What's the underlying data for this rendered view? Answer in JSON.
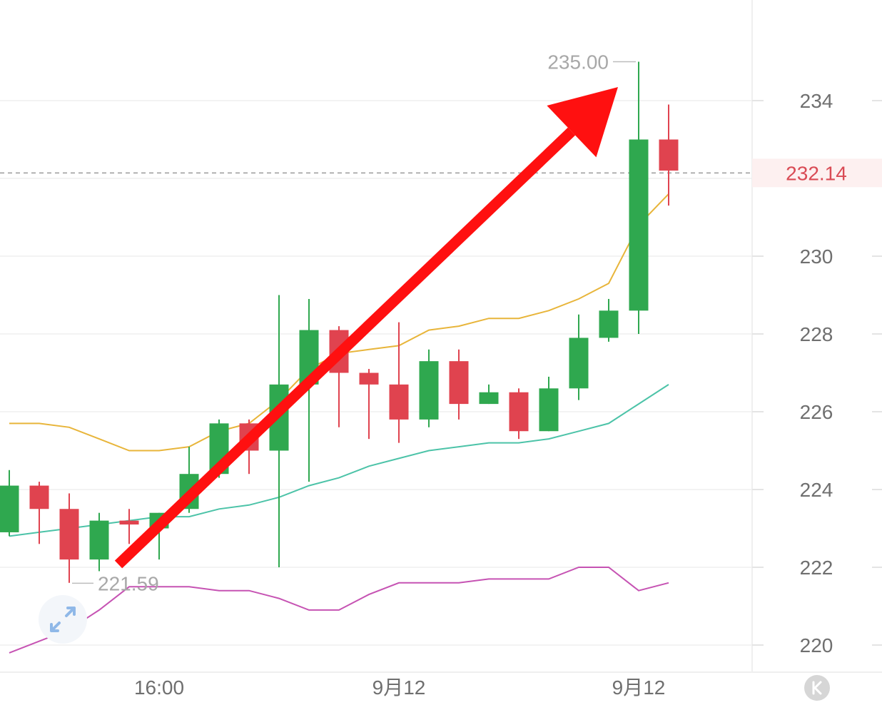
{
  "chart_data": {
    "type": "candlestick",
    "y_axis": {
      "ticks": [
        234,
        230,
        228,
        226,
        224,
        222,
        220
      ],
      "range": [
        219.3,
        236.6
      ]
    },
    "x_axis": {
      "labels": [
        {
          "text": "16:00",
          "index": 5
        },
        {
          "text": "9月12",
          "index": 13
        },
        {
          "text": "9月12",
          "index": 21
        }
      ]
    },
    "current_price": {
      "value": 232.14,
      "label": "232.14"
    },
    "high_marker": {
      "value": 235.0,
      "label": "235.00",
      "index": 21
    },
    "low_marker": {
      "value": 221.59,
      "label": "221.59",
      "index": 2
    },
    "candles": [
      {
        "open": 222.9,
        "close": 224.1,
        "high": 224.5,
        "low": 222.8
      },
      {
        "open": 224.1,
        "close": 223.5,
        "high": 224.2,
        "low": 222.6
      },
      {
        "open": 223.5,
        "close": 222.2,
        "high": 223.9,
        "low": 221.6
      },
      {
        "open": 222.2,
        "close": 223.2,
        "high": 223.4,
        "low": 221.9
      },
      {
        "open": 223.2,
        "close": 223.1,
        "high": 223.5,
        "low": 222.6
      },
      {
        "open": 223.0,
        "close": 223.4,
        "high": 223.4,
        "low": 222.2
      },
      {
        "open": 223.5,
        "close": 224.4,
        "high": 225.1,
        "low": 223.4
      },
      {
        "open": 224.4,
        "close": 225.7,
        "high": 225.8,
        "low": 224.3
      },
      {
        "open": 225.7,
        "close": 225.0,
        "high": 225.8,
        "low": 224.4
      },
      {
        "open": 225.0,
        "close": 226.7,
        "high": 229.0,
        "low": 222.0
      },
      {
        "open": 226.7,
        "close": 228.1,
        "high": 228.9,
        "low": 224.2
      },
      {
        "open": 228.1,
        "close": 227.0,
        "high": 228.2,
        "low": 225.6
      },
      {
        "open": 227.0,
        "close": 226.7,
        "high": 227.1,
        "low": 225.3
      },
      {
        "open": 226.7,
        "close": 225.8,
        "high": 228.3,
        "low": 225.2
      },
      {
        "open": 225.8,
        "close": 227.3,
        "high": 227.6,
        "low": 225.6
      },
      {
        "open": 227.3,
        "close": 226.2,
        "high": 227.6,
        "low": 225.8
      },
      {
        "open": 226.2,
        "close": 226.5,
        "high": 226.7,
        "low": 226.2
      },
      {
        "open": 226.5,
        "close": 225.5,
        "high": 226.6,
        "low": 225.3
      },
      {
        "open": 225.5,
        "close": 226.6,
        "high": 226.9,
        "low": 225.5
      },
      {
        "open": 226.6,
        "close": 227.9,
        "high": 228.5,
        "low": 226.3
      },
      {
        "open": 227.9,
        "close": 228.6,
        "high": 228.9,
        "low": 227.8
      },
      {
        "open": 228.6,
        "close": 233.0,
        "high": 235.0,
        "low": 228.0
      },
      {
        "open": 233.0,
        "close": 232.2,
        "high": 233.9,
        "low": 231.3
      }
    ],
    "series": [
      {
        "values": [
          225.7,
          225.7,
          225.6,
          225.3,
          225.0,
          225.0,
          225.1,
          225.5,
          225.7,
          226.3,
          227.1,
          227.5,
          227.6,
          227.7,
          228.1,
          228.2,
          228.4,
          228.4,
          228.6,
          228.9,
          229.3,
          230.8,
          231.6
        ]
      },
      {
        "values": [
          222.8,
          222.9,
          223.0,
          223.1,
          223.2,
          223.3,
          223.3,
          223.5,
          223.6,
          223.8,
          224.1,
          224.3,
          224.6,
          224.8,
          225.0,
          225.1,
          225.2,
          225.2,
          225.3,
          225.5,
          225.7,
          226.2,
          226.7
        ]
      },
      {
        "values": [
          219.8,
          220.1,
          220.4,
          220.9,
          221.5,
          221.5,
          221.5,
          221.4,
          221.4,
          221.2,
          220.9,
          220.9,
          221.3,
          221.6,
          221.6,
          221.6,
          221.7,
          221.7,
          221.7,
          222.0,
          222.0,
          221.4,
          221.6
        ]
      }
    ],
    "colors": {
      "up": "#2fa84f",
      "down": "#e0434f",
      "series_1": "#e8b53a",
      "series_2": "#4cc3a8",
      "series_3": "#c653b3",
      "arrow": "#ff1010",
      "current_price": "#d94b55",
      "grid": "#efefef"
    },
    "annotations": [
      {
        "type": "arrow",
        "direction": "up-right",
        "from_index": 4,
        "to_index": 20
      }
    ],
    "grid": true
  },
  "icons": {
    "expand": "expand-arrows-icon",
    "corner": "k-circle-icon"
  }
}
